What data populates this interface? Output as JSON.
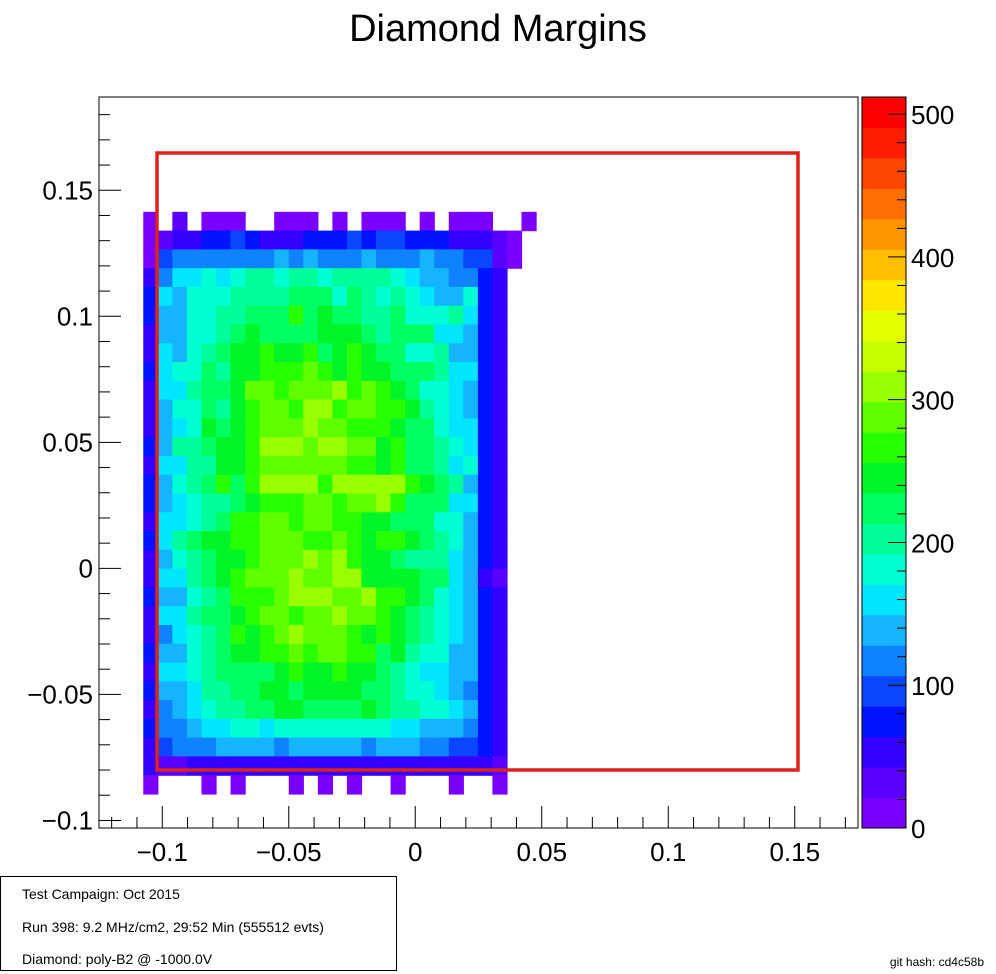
{
  "chart_data": {
    "type": "heatmap",
    "title": "Diamond Margins",
    "xlabel": "",
    "ylabel": "",
    "xlim": [
      -0.125,
      0.175
    ],
    "ylim": [
      -0.103,
      0.187
    ],
    "x_ticks": [
      "−0.1",
      "−0.05",
      "0",
      "0.05",
      "0.1",
      "0.15"
    ],
    "x_tick_values": [
      -0.1,
      -0.05,
      0,
      0.05,
      0.1,
      0.15
    ],
    "y_ticks": [
      "−0.1",
      "−0.05",
      "0",
      "0.05",
      "0.1",
      "0.15"
    ],
    "y_tick_values": [
      -0.1,
      -0.05,
      0,
      0.05,
      0.1,
      0.15
    ],
    "z_range": [
      0,
      512
    ],
    "z_ticks": [
      "0",
      "100",
      "200",
      "300",
      "400",
      "500"
    ],
    "z_tick_values": [
      0,
      100,
      200,
      300,
      400,
      500
    ],
    "palette": [
      "#7a00ff",
      "#5a00ff",
      "#3300ff",
      "#0014ff",
      "#0a46ff",
      "#0f82ff",
      "#14b4ff",
      "#00e6ff",
      "#00ffd2",
      "#00ff9a",
      "#00ff60",
      "#00f528",
      "#28ff00",
      "#60ff00",
      "#9aff00",
      "#c8ff00",
      "#e6ff00",
      "#ffe600",
      "#ffbe00",
      "#ff9600",
      "#ff6e00",
      "#ff4600",
      "#ff1e00",
      "#ff0000"
    ],
    "x_bin_start": -0.1075,
    "y_bin_start": -0.0895,
    "bin_width": 0.00575,
    "bin_height": 0.00745,
    "grid": "|.X.|||..|||.|.|||.|.|||..|\n|ABBCCDCBBBCCCDCDDCCCBBBA|\n|DEEEEEEEFEFEEEFEEEFEEDDA|\nBEGGHGHIIHIIHIIIIHGFFEECB\nCGFHHHIIIIJJJHJIHIHGFFHCB\nCFFHHIIJJJLJKJJIIJHHHIGCB\nBFFHHIJKJJJJKKKJIJJJGGFCB\nBGFHIJKKLKKLJKLKJJHHIFFCB\nCGHHJIKKLLLMLKLKKJJJIGGCB\nBGGIJJKMMLMMMNLMLKJHHGFCB\nBFHHJIKLMMLNNLMMLLKIHGFCB\nBFGHKJKLMMMNMMLLLKJJHGGCB\nCFIIJKKLNNNMNNMMKLJJIHGCB\nBGGIIKKLMMMMMMLLKLJJIGHCB\nCFHIJLJLNNNNLNNNNNLKJIFCB\nCFGHIIJKLLLMMLMMNLJJJGGCB\nBGGHIJLLMMLMMLLKKJJJHHFCB\nCGIJKKLLMMMLLMLKLLKJIHFCB\nBFHIJKKLMMMNMNLKKJIIIGFCB\nBGGIJKLMMMNMMNNKKKKJJGFBA\nCFFHIJLLLMNNNMMNLLKJHGFCB\nBGGIJJKLMMLMMNMMLKJIHGFCB\nBEGHIJLKLMNMMMLKLKJIHGFCB\nCFFHIJKKLLMLMMLLJKIHHFFCB\nBGGHIJJJJKLKKLKKJIHGGFFCB\nCFFGIIJJKKJKKKKJJIHHGFECB\nBEFGHIIJJKKJJJJKJIIHHGFCB\nCEEFGGHHGHHHHHHHHGGFFFECB\nBDEEEFFFFEFFFFFEFFFEEDDCB\nBAABBBBBBBBBBBBBBBBBBBBBA\n|...|.|...|.|.|..|...|..|"
  },
  "info": {
    "line1": "Test Campaign: Oct 2015",
    "line2": "Run 398: 9.2 MHz/cm2, 29:52 Min (555512 evts)",
    "line3": "Diamond: poly-B2 @ -1000.0V"
  },
  "footer": {
    "git_hash": "git hash: cd4c58b"
  },
  "colors": {
    "margin_box": "#e0201c",
    "frame": "#000000"
  }
}
